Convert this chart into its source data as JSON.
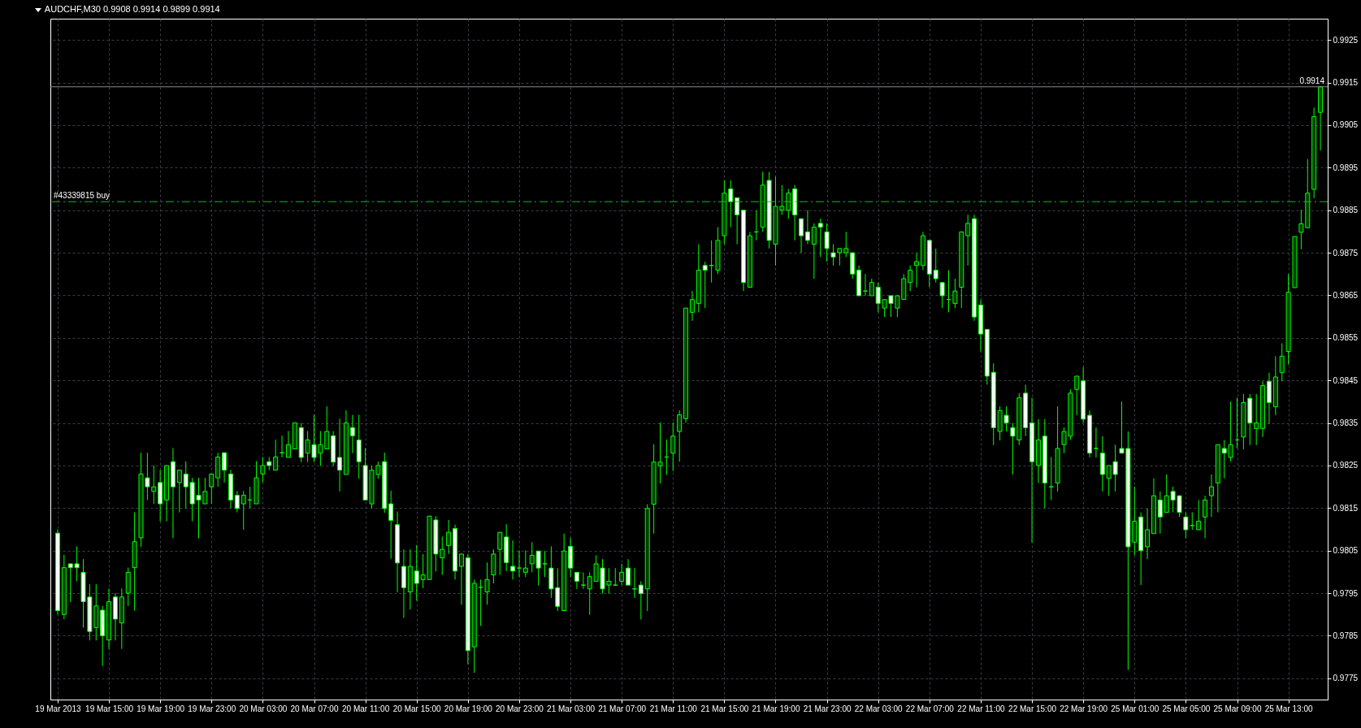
{
  "chart_data": {
    "type": "candlestick",
    "title": "AUDCHF,M30  0.9908 0.9914 0.9899 0.9914",
    "categories": [
      "19 Mar 2013",
      null,
      null,
      null,
      null,
      null,
      null,
      null,
      "19 Mar 15:00",
      null,
      null,
      null,
      null,
      null,
      null,
      null,
      "19 Mar 19:00",
      null,
      null,
      null,
      null,
      null,
      null,
      null,
      "19 Mar 23:00",
      null,
      null,
      null,
      null,
      null,
      null,
      null,
      "20 Mar 03:00",
      null,
      null,
      null,
      null,
      null,
      null,
      null,
      "20 Mar 07:00",
      null,
      null,
      null,
      null,
      null,
      null,
      null,
      "20 Mar 11:00",
      null,
      null,
      null,
      null,
      null,
      null,
      null,
      "20 Mar 15:00",
      null,
      null,
      null,
      null,
      null,
      null,
      null,
      "20 Mar 19:00",
      null,
      null,
      null,
      null,
      null,
      null,
      null,
      "20 Mar 23:00",
      null,
      null,
      null,
      null,
      null,
      null,
      null,
      "21 Mar 03:00",
      null,
      null,
      null,
      null,
      null,
      null,
      null,
      "21 Mar 07:00",
      null,
      null,
      null,
      null,
      null,
      null,
      null,
      "21 Mar 11:00",
      null,
      null,
      null,
      null,
      null,
      null,
      null,
      "21 Mar 15:00",
      null,
      null,
      null,
      null,
      null,
      null,
      null,
      "21 Mar 19:00",
      null,
      null,
      null,
      null,
      null,
      null,
      null,
      "21 Mar 23:00",
      null,
      null,
      null,
      null,
      null,
      null,
      null,
      "22 Mar 03:00",
      null,
      null,
      null,
      null,
      null,
      null,
      null,
      "22 Mar 07:00",
      null,
      null,
      null,
      null,
      null,
      null,
      null,
      "22 Mar 11:00",
      null,
      null,
      null,
      null,
      null,
      null,
      null,
      "22 Mar 15:00",
      null,
      null,
      null,
      null,
      null,
      null,
      null,
      "22 Mar 19:00",
      null,
      null,
      null,
      null,
      null,
      null,
      null,
      "25 Mar 01:00",
      null,
      null,
      null,
      null,
      null,
      null,
      null,
      "25 Mar 05:00",
      null,
      null,
      null,
      null,
      null,
      null,
      null,
      "25 Mar 09:00",
      null,
      null,
      null,
      null,
      null,
      null,
      null,
      "25 Mar 13:00",
      null,
      null,
      null,
      null,
      null
    ],
    "series": [
      {
        "color": "#00ff00",
        "axis": "y2",
        "ohlc": [
          [
            0.98091,
            0.981,
            0.979,
            0.97909
          ],
          [
            0.979,
            0.9804,
            0.97889,
            0.9801
          ],
          [
            0.98019,
            0.98019,
            0.97929,
            0.9801
          ],
          [
            0.98019,
            0.9806,
            0.97978,
            0.9801
          ],
          [
            0.97999,
            0.9803,
            0.97869,
            0.9793
          ],
          [
            0.97941,
            0.97971,
            0.97839,
            0.9786
          ],
          [
            0.97869,
            0.97971,
            0.97839,
            0.9792
          ],
          [
            0.9791,
            0.9792,
            0.97779,
            0.9785
          ],
          [
            0.9784,
            0.97961,
            0.97819,
            0.9793
          ],
          [
            0.97941,
            0.9795,
            0.97839,
            0.97889
          ],
          [
            0.9788,
            0.97961,
            0.97819,
            0.97941
          ],
          [
            0.9795,
            0.9801,
            0.9792,
            0.97999
          ],
          [
            0.9801,
            0.9814,
            0.97909,
            0.98071
          ],
          [
            0.9808,
            0.9828,
            0.98059,
            0.9823
          ],
          [
            0.98221,
            0.9828,
            0.98169,
            0.982
          ],
          [
            0.98189,
            0.9825,
            0.9816,
            0.982
          ],
          [
            0.9821,
            0.9824,
            0.98119,
            0.9816
          ],
          [
            0.98169,
            0.9825,
            0.98119,
            0.9825
          ],
          [
            0.98259,
            0.98291,
            0.98079,
            0.982
          ],
          [
            0.9821,
            0.98239,
            0.9814,
            0.98239
          ],
          [
            0.9823,
            0.9826,
            0.98149,
            0.982
          ],
          [
            0.9821,
            0.98221,
            0.98119,
            0.9816
          ],
          [
            0.9818,
            0.98221,
            0.98079,
            0.98169
          ],
          [
            0.9816,
            0.98221,
            0.9816,
            0.98189
          ],
          [
            0.982,
            0.9823,
            0.9816,
            0.9823
          ],
          [
            0.98221,
            0.9828,
            0.982,
            0.9827
          ],
          [
            0.9828,
            0.9828,
            0.9821,
            0.98239
          ],
          [
            0.9823,
            0.9824,
            0.98149,
            0.98169
          ],
          [
            0.9818,
            0.9819,
            0.9814,
            0.98149
          ],
          [
            0.9816,
            0.9819,
            0.98099,
            0.9818
          ],
          [
            0.98169,
            0.982,
            0.98149,
            0.98169
          ],
          [
            0.9816,
            0.9826,
            0.9816,
            0.98221
          ],
          [
            0.9823,
            0.9827,
            0.9821,
            0.9825
          ],
          [
            0.98259,
            0.9827,
            0.98239,
            0.9825
          ],
          [
            0.98239,
            0.98311,
            0.98239,
            0.9827
          ],
          [
            0.9828,
            0.9832,
            0.98269,
            0.9828
          ],
          [
            0.98269,
            0.98331,
            0.98269,
            0.98299
          ],
          [
            0.98289,
            0.9835,
            0.98289,
            0.9835
          ],
          [
            0.98339,
            0.9835,
            0.98258,
            0.98269
          ],
          [
            0.98279,
            0.98331,
            0.98258,
            0.9831
          ],
          [
            0.98299,
            0.98369,
            0.98258,
            0.98269
          ],
          [
            0.98279,
            0.98331,
            0.98249,
            0.98299
          ],
          [
            0.98289,
            0.98389,
            0.98289,
            0.9833
          ],
          [
            0.9832,
            0.98331,
            0.98249,
            0.98258
          ],
          [
            0.98269,
            0.9836,
            0.98189,
            0.98239
          ],
          [
            0.98229,
            0.9838,
            0.98229,
            0.9835
          ],
          [
            0.98339,
            0.98369,
            0.98279,
            0.9832
          ],
          [
            0.9831,
            0.98369,
            0.98219,
            0.98259
          ],
          [
            0.9825,
            0.98291,
            0.98169,
            0.98169
          ],
          [
            0.9816,
            0.9825,
            0.98149,
            0.98239
          ],
          [
            0.98229,
            0.98259,
            0.98219,
            0.9825
          ],
          [
            0.98259,
            0.9828,
            0.98139,
            0.98149
          ],
          [
            0.9816,
            0.98191,
            0.98031,
            0.98121
          ],
          [
            0.98111,
            0.98142,
            0.97952,
            0.98021
          ],
          [
            0.98013,
            0.98053,
            0.97892,
            0.97963
          ],
          [
            0.97953,
            0.98053,
            0.97912,
            0.98013
          ],
          [
            0.98002,
            0.98063,
            0.97932,
            0.97973
          ],
          [
            0.97982,
            0.98042,
            0.97962,
            0.97993
          ],
          [
            0.97982,
            0.98131,
            0.97982,
            0.98131
          ],
          [
            0.98122,
            0.98131,
            0.98001,
            0.98042
          ],
          [
            0.98033,
            0.98083,
            0.97993,
            0.98053
          ],
          [
            0.98062,
            0.98122,
            0.98042,
            0.98093
          ],
          [
            0.98102,
            0.98111,
            0.97982,
            0.98002
          ],
          [
            0.98013,
            0.98042,
            0.97923,
            0.98042
          ],
          [
            0.98033,
            0.98042,
            0.97783,
            0.97815
          ],
          [
            0.97824,
            0.97982,
            0.97763,
            0.97973
          ],
          [
            0.97964,
            0.97982,
            0.97873,
            0.97964
          ],
          [
            0.97953,
            0.98022,
            0.97923,
            0.97982
          ],
          [
            0.97993,
            0.98053,
            0.97973,
            0.98042
          ],
          [
            0.98053,
            0.98093,
            0.97993,
            0.98093
          ],
          [
            0.98082,
            0.98112,
            0.98002,
            0.98022
          ],
          [
            0.98013,
            0.98074,
            0.97982,
            0.98002
          ],
          [
            0.98009,
            0.9805,
            0.97988,
            0.98009
          ],
          [
            0.97999,
            0.9805,
            0.97988,
            0.98009
          ],
          [
            0.98019,
            0.9807,
            0.97999,
            0.98039
          ],
          [
            0.98049,
            0.98049,
            0.97968,
            0.98009
          ],
          [
            0.98019,
            0.98049,
            0.97988,
            0.98019
          ],
          [
            0.98009,
            0.9806,
            0.97939,
            0.9796
          ],
          [
            0.97963,
            0.98009,
            0.97908,
            0.97919
          ],
          [
            0.97909,
            0.9809,
            0.97909,
            0.98049
          ],
          [
            0.9806,
            0.9808,
            0.97988,
            0.98009
          ],
          [
            0.97999,
            0.97999,
            0.9796,
            0.97978
          ],
          [
            0.97969,
            0.97999,
            0.9796,
            0.97969
          ],
          [
            0.9796,
            0.97999,
            0.97899,
            0.97989
          ],
          [
            0.97978,
            0.98039,
            0.97978,
            0.98019
          ],
          [
            0.98009,
            0.9803,
            0.97949,
            0.9796
          ],
          [
            0.97969,
            0.98009,
            0.97949,
            0.97978
          ],
          [
            0.97969,
            0.98009,
            0.97969,
            0.97969
          ],
          [
            0.97978,
            0.98019,
            0.97969,
            0.97999
          ],
          [
            0.98009,
            0.9803,
            0.97969,
            0.97969
          ],
          [
            0.9796,
            0.98009,
            0.97939,
            0.9796
          ],
          [
            0.97969,
            0.97978,
            0.97888,
            0.97949
          ],
          [
            0.9796,
            0.98159,
            0.97908,
            0.98149
          ],
          [
            0.98159,
            0.983,
            0.9809,
            0.98258
          ],
          [
            0.98249,
            0.98351,
            0.98208,
            0.98258
          ],
          [
            0.9827,
            0.98311,
            0.98228,
            0.9827
          ],
          [
            0.98279,
            0.98351,
            0.98237,
            0.98319
          ],
          [
            0.9833,
            0.9838,
            0.98259,
            0.98369
          ],
          [
            0.9836,
            0.9862,
            0.98351,
            0.9862
          ],
          [
            0.9861,
            0.9866,
            0.9859,
            0.9864
          ],
          [
            0.98631,
            0.9877,
            0.9861,
            0.98709
          ],
          [
            0.9872,
            0.98729,
            0.9862,
            0.98709
          ],
          [
            0.9872,
            0.98779,
            0.9868,
            0.9872
          ],
          [
            0.98709,
            0.9881,
            0.987,
            0.98779
          ],
          [
            0.9879,
            0.9892,
            0.9877,
            0.9889
          ],
          [
            0.989,
            0.9892,
            0.9881,
            0.9887
          ],
          [
            0.98879,
            0.98879,
            0.9877,
            0.98839
          ],
          [
            0.9885,
            0.9885,
            0.9866,
            0.9868
          ],
          [
            0.98669,
            0.98799,
            0.98669,
            0.9879
          ],
          [
            0.98799,
            0.9885,
            0.98779,
            0.98799
          ],
          [
            0.9881,
            0.9894,
            0.98799,
            0.98909
          ],
          [
            0.9892,
            0.9894,
            0.9876,
            0.98779
          ],
          [
            0.9877,
            0.98929,
            0.9872,
            0.98859
          ],
          [
            0.9885,
            0.98909,
            0.98839,
            0.98859
          ],
          [
            0.9885,
            0.989,
            0.9883,
            0.9889
          ],
          [
            0.989,
            0.98909,
            0.98779,
            0.98839
          ],
          [
            0.9883,
            0.9883,
            0.9875,
            0.9879
          ],
          [
            0.98799,
            0.9885,
            0.9877,
            0.98779
          ],
          [
            0.9877,
            0.98819,
            0.98689,
            0.9881
          ],
          [
            0.98819,
            0.9883,
            0.9874,
            0.9881
          ],
          [
            0.98799,
            0.98819,
            0.98729,
            0.9876
          ],
          [
            0.9875,
            0.9877,
            0.9872,
            0.9874
          ],
          [
            0.9875,
            0.9876,
            0.9872,
            0.9876
          ],
          [
            0.9875,
            0.98799,
            0.9874,
            0.9876
          ],
          [
            0.9875,
            0.9875,
            0.98689,
            0.987
          ],
          [
            0.98709,
            0.9872,
            0.98649,
            0.98649
          ],
          [
            0.9866,
            0.987,
            0.98649,
            0.9866
          ],
          [
            0.98649,
            0.98689,
            0.98649,
            0.9868
          ],
          [
            0.98669,
            0.9868,
            0.9861,
            0.98631
          ],
          [
            0.9862,
            0.9864,
            0.98599,
            0.9864
          ],
          [
            0.98649,
            0.98649,
            0.98599,
            0.98631
          ],
          [
            0.9862,
            0.98649,
            0.98599,
            0.98649
          ],
          [
            0.9864,
            0.987,
            0.9864,
            0.98689
          ],
          [
            0.9868,
            0.9872,
            0.9866,
            0.98709
          ],
          [
            0.9872,
            0.9875,
            0.98669,
            0.98729
          ],
          [
            0.9872,
            0.98799,
            0.98709,
            0.9879
          ],
          [
            0.98779,
            0.98779,
            0.98669,
            0.987
          ],
          [
            0.98709,
            0.9876,
            0.9868,
            0.98689
          ],
          [
            0.9868,
            0.9868,
            0.9862,
            0.98649
          ],
          [
            0.9864,
            0.98709,
            0.9861,
            0.9864
          ],
          [
            0.98631,
            0.98689,
            0.9862,
            0.9866
          ],
          [
            0.98669,
            0.98799,
            0.9862,
            0.98799
          ],
          [
            0.9879,
            0.98839,
            0.9872,
            0.98819
          ],
          [
            0.9883,
            0.98839,
            0.9859,
            0.98599
          ],
          [
            0.98627,
            0.9864,
            0.98518,
            0.98559
          ],
          [
            0.9857,
            0.9857,
            0.9844,
            0.9846
          ],
          [
            0.98469,
            0.9849,
            0.98298,
            0.98339
          ],
          [
            0.9833,
            0.98389,
            0.98309,
            0.98379
          ],
          [
            0.98368,
            0.98389,
            0.9833,
            0.9835
          ],
          [
            0.98339,
            0.9835,
            0.98229,
            0.98319
          ],
          [
            0.9831,
            0.9842,
            0.98298,
            0.98409
          ],
          [
            0.9842,
            0.9844,
            0.98319,
            0.98339
          ],
          [
            0.9835,
            0.98409,
            0.98069,
            0.98259
          ],
          [
            0.9825,
            0.98359,
            0.98209,
            0.9831
          ],
          [
            0.98319,
            0.98359,
            0.98149,
            0.98209
          ],
          [
            0.982,
            0.9827,
            0.98169,
            0.982
          ],
          [
            0.98209,
            0.98389,
            0.98189,
            0.9829
          ],
          [
            0.98299,
            0.98339,
            0.98279,
            0.9833
          ],
          [
            0.98319,
            0.98429,
            0.9831,
            0.9842
          ],
          [
            0.98429,
            0.9846,
            0.98368,
            0.9846
          ],
          [
            0.98449,
            0.98481,
            0.9835,
            0.98359
          ],
          [
            0.98368,
            0.98379,
            0.98269,
            0.98279
          ],
          [
            0.9829,
            0.98339,
            0.98269,
            0.9829
          ],
          [
            0.98279,
            0.98319,
            0.98189,
            0.98229
          ],
          [
            0.9822,
            0.9825,
            0.98179,
            0.9825
          ],
          [
            0.98259,
            0.98299,
            0.98189,
            0.98229
          ],
          [
            0.9829,
            0.984,
            0.98279,
            0.98279
          ],
          [
            0.9829,
            0.9833,
            0.9777,
            0.98059
          ],
          [
            0.9807,
            0.982,
            0.98039,
            0.98119
          ],
          [
            0.98129,
            0.9814,
            0.97969,
            0.9805
          ],
          [
            0.98059,
            0.98149,
            0.9803,
            0.98099
          ],
          [
            0.9809,
            0.9822,
            0.9809,
            0.98179
          ],
          [
            0.98169,
            0.98189,
            0.9809,
            0.98129
          ],
          [
            0.9814,
            0.98229,
            0.9814,
            0.98179
          ],
          [
            0.98189,
            0.982,
            0.9814,
            0.98169
          ],
          [
            0.98179,
            0.98179,
            0.98129,
            0.9814
          ],
          [
            0.98129,
            0.9814,
            0.98079,
            0.98099
          ],
          [
            0.98109,
            0.9814,
            0.98099,
            0.98109
          ],
          [
            0.98099,
            0.98169,
            0.98099,
            0.98119
          ],
          [
            0.98129,
            0.98179,
            0.98079,
            0.98169
          ],
          [
            0.98179,
            0.98229,
            0.98129,
            0.982
          ],
          [
            0.98209,
            0.98299,
            0.9814,
            0.98299
          ],
          [
            0.9829,
            0.9831,
            0.9822,
            0.98279
          ],
          [
            0.98269,
            0.984,
            0.98259,
            0.98299
          ],
          [
            0.9831,
            0.98409,
            0.9829,
            0.9831
          ],
          [
            0.98317,
            0.98418,
            0.98288,
            0.98398
          ],
          [
            0.98408,
            0.98418,
            0.98298,
            0.9835
          ],
          [
            0.98337,
            0.98418,
            0.98298,
            0.9835
          ],
          [
            0.98337,
            0.98448,
            0.98317,
            0.98438
          ],
          [
            0.98448,
            0.98468,
            0.98348,
            0.98398
          ],
          [
            0.98388,
            0.98507,
            0.98368,
            0.98458
          ],
          [
            0.98468,
            0.98537,
            0.98448,
            0.98507
          ],
          [
            0.98518,
            0.987,
            0.98487,
            0.98657
          ],
          [
            0.98668,
            0.98788,
            0.98668,
            0.98788
          ],
          [
            0.98798,
            0.98851,
            0.98758,
            0.98818
          ],
          [
            0.98809,
            0.9897,
            0.98809,
            0.9889
          ],
          [
            0.98899,
            0.99091,
            0.98878,
            0.9907
          ],
          [
            0.9908,
            0.9914,
            0.9899,
            0.9914
          ]
        ]
      }
    ],
    "y2lim": [
      0.977,
      0.993
    ],
    "y2ticks": [
      0.9775,
      0.9785,
      0.9795,
      0.9805,
      0.9815,
      0.9825,
      0.9835,
      0.9845,
      0.9855,
      0.9865,
      0.9875,
      0.9885,
      0.9895,
      0.9905,
      0.9915,
      0.9925
    ],
    "grid": true,
    "ref_lines": [
      {
        "axis": "y2",
        "value": 0.9887,
        "label": "#43339815 buy",
        "color": "#00c800",
        "line_style": "dashed"
      },
      {
        "axis": "y2",
        "value": 0.9914,
        "label": "0.9914",
        "color": "#8a8a8a",
        "line_style": "solid"
      }
    ]
  }
}
